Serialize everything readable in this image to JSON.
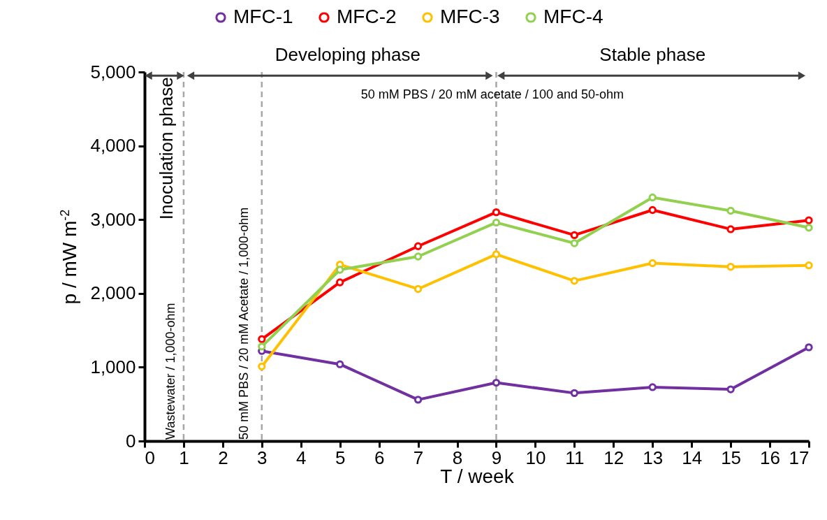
{
  "chart_data": {
    "type": "line",
    "xlabel": "T / week",
    "ylabel": "p / mW m$^{-2}$",
    "x": [
      3,
      5,
      7,
      9,
      11,
      13,
      15,
      17
    ],
    "series": [
      {
        "name": "MFC-1",
        "color": "#7030a0",
        "values": [
          1220,
          1040,
          560,
          790,
          650,
          730,
          700,
          1270
        ]
      },
      {
        "name": "MFC-2",
        "color": "#ff0000",
        "values": [
          1380,
          2150,
          2640,
          3100,
          2790,
          3130,
          2870,
          2990
        ]
      },
      {
        "name": "MFC-3",
        "color": "#ffc000",
        "values": [
          1010,
          2390,
          2060,
          2530,
          2170,
          2410,
          2360,
          2380
        ]
      },
      {
        "name": "MFC-4",
        "color": "#92d050",
        "values": [
          1280,
          2320,
          2500,
          2960,
          2680,
          3300,
          3120,
          2890
        ]
      }
    ],
    "xlim": [
      0,
      17
    ],
    "xticks": [
      0,
      1,
      2,
      3,
      4,
      5,
      6,
      7,
      8,
      9,
      10,
      11,
      12,
      13,
      14,
      15,
      16,
      17
    ],
    "ylim": [
      0,
      5000
    ],
    "yticks": [
      0,
      {
        "value": 1000,
        "label": "1,000"
      },
      {
        "value": 2000,
        "label": "2,000"
      },
      {
        "value": 3000,
        "label": "3,000"
      },
      {
        "value": 4000,
        "label": "4,000"
      },
      {
        "value": 5000,
        "label": "5,000"
      }
    ],
    "ref_lines": [
      {
        "axis": "x",
        "value": 1,
        "color": "#a6a6a6",
        "line_style": "dashed"
      },
      {
        "axis": "x",
        "value": 3,
        "color": "#a6a6a6",
        "line_style": "dashed"
      },
      {
        "axis": "x",
        "value": 9,
        "color": "#a6a6a6",
        "line_style": "dashed"
      }
    ],
    "annotations": [
      "Inoculation phase",
      "Wastewater / 1,000-ohm",
      "Developing phase",
      "Stable phase",
      "50 mM PBS / 20 mM Acetate / 1,000-ohm",
      "50 mM PBS / 20 mM acetate / 100 and 50-ohm"
    ],
    "grid": false,
    "legend": "top",
    "marker": "circle",
    "line_style": "solid"
  }
}
